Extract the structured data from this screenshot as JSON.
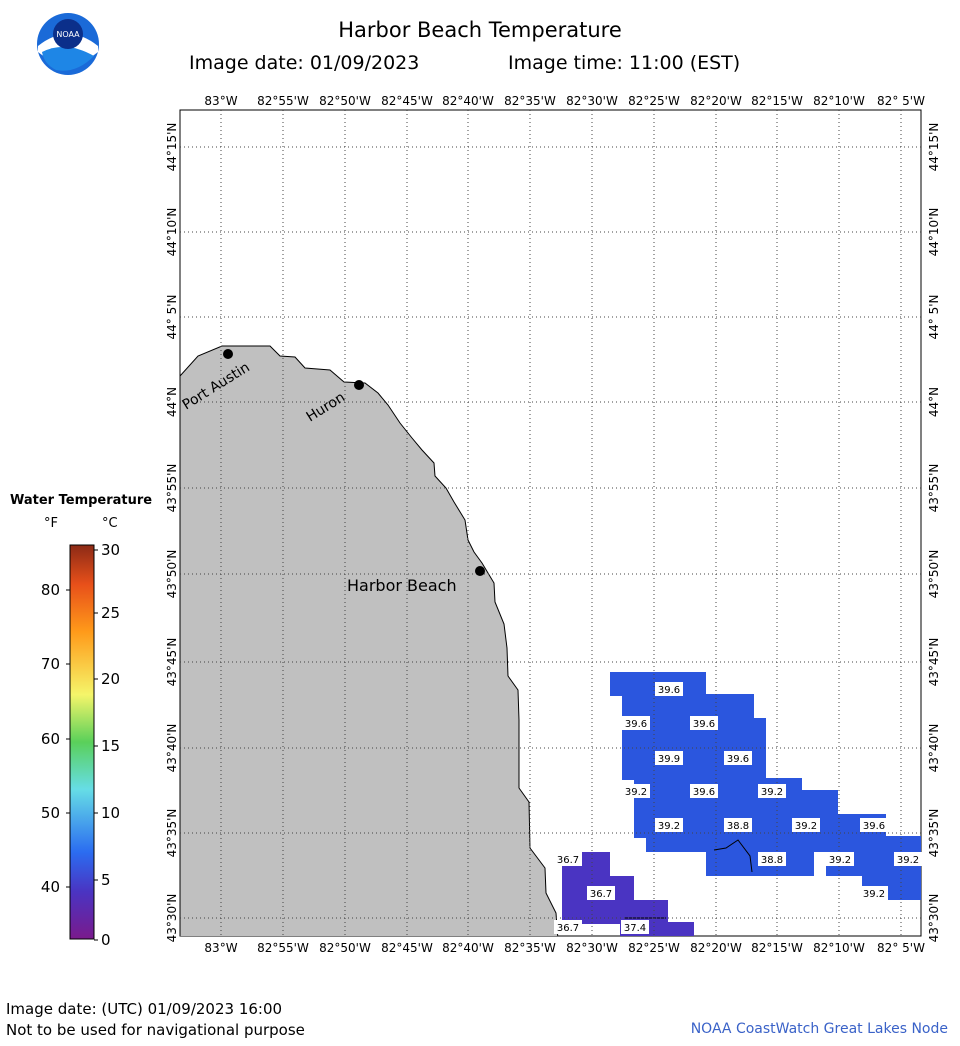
{
  "header": {
    "title": "Harbor Beach Temperature",
    "image_date": "Image date: 01/09/2023",
    "image_time": "Image time: 11:00 (EST)",
    "logo_text": "NOAA"
  },
  "legend": {
    "title": "Water Temperature",
    "unit_f": "°F",
    "unit_c": "°C",
    "f_ticks": [
      "80",
      "70",
      "60",
      "50",
      "40"
    ],
    "c_ticks": [
      "30",
      "25",
      "20",
      "15",
      "10",
      "5",
      "0"
    ]
  },
  "map": {
    "lon_labels": [
      "83°W",
      "82°55'W",
      "82°50'W",
      "82°45'W",
      "82°40'W",
      "82°35'W",
      "82°30'W",
      "82°25'W",
      "82°20'W",
      "82°15'W",
      "82°10'W",
      "82° 5'W"
    ],
    "lat_labels": [
      "44°15'N",
      "44°10'N",
      "44° 5'N",
      "44°N",
      "43°55'N",
      "43°50'N",
      "43°45'N",
      "43°40'N",
      "43°35'N",
      "43°30'N"
    ],
    "places": [
      "Port Austin",
      "Huron",
      "Harbor Beach"
    ],
    "temperature_labels": [
      "39.6",
      "39.6",
      "39.6",
      "39.9",
      "39.6",
      "39.2",
      "39.6",
      "39.2",
      "39.2",
      "38.8",
      "39.2",
      "39.6",
      "36.7",
      "38.8",
      "39.2",
      "39.2",
      "36.7",
      "39.2",
      "36.7",
      "37.4"
    ],
    "colors": {
      "land": "#c0c0c0",
      "water_39": "#2b56de",
      "water_37": "#4a34c2",
      "grid": "#555555"
    }
  },
  "footer": {
    "utc_date": "Image date: (UTC) 01/09/2023  16:00",
    "disclaimer": "Not to be used for navigational purpose",
    "credit": "NOAA CoastWatch Great Lakes Node"
  }
}
